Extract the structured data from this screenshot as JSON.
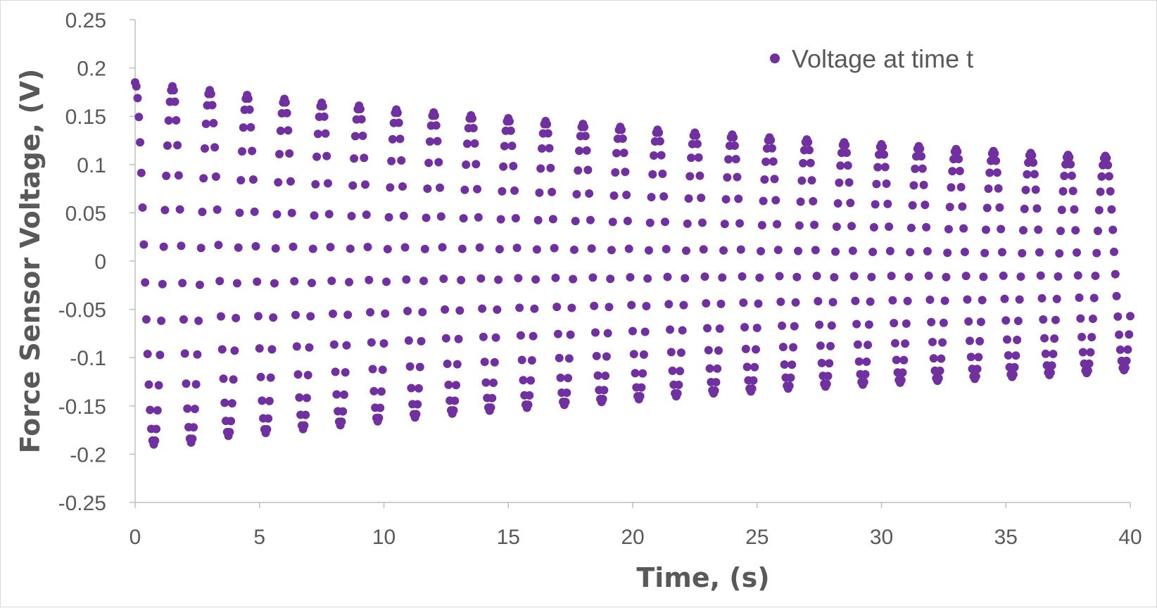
{
  "chart_data": {
    "type": "scatter",
    "title": "",
    "xlabel": "Time, (s)",
    "ylabel": "Force Sensor Voltage, (V)",
    "xlim": [
      0,
      40
    ],
    "ylim": [
      -0.25,
      0.25
    ],
    "x_ticks": [
      "0",
      "5",
      "10",
      "15",
      "20",
      "25",
      "30",
      "35",
      "40"
    ],
    "y_ticks": [
      "0.25",
      "0.2",
      "0.15",
      "0.1",
      "0.05",
      "0",
      "-0.05",
      "-0.1",
      "-0.15",
      "-0.2",
      "-0.25"
    ],
    "grid": false,
    "legend": "top-right",
    "marker_color": "#7030a0",
    "series": [
      {
        "name": "Voltage at time t",
        "period": 1.5,
        "sample_interval": 0.05,
        "peaks": [
          {
            "t": 0.0,
            "v": 0.185
          },
          {
            "t": 1.5,
            "v": 0.181
          },
          {
            "t": 3.0,
            "v": 0.177
          },
          {
            "t": 4.5,
            "v": 0.172
          },
          {
            "t": 6.0,
            "v": 0.168
          },
          {
            "t": 7.5,
            "v": 0.164
          },
          {
            "t": 9.0,
            "v": 0.161
          },
          {
            "t": 10.5,
            "v": 0.157
          },
          {
            "t": 12.0,
            "v": 0.154
          },
          {
            "t": 13.5,
            "v": 0.151
          },
          {
            "t": 15.0,
            "v": 0.148
          },
          {
            "t": 16.5,
            "v": 0.145
          },
          {
            "t": 18.0,
            "v": 0.142
          },
          {
            "t": 19.5,
            "v": 0.139
          },
          {
            "t": 21.0,
            "v": 0.136
          },
          {
            "t": 22.5,
            "v": 0.133
          },
          {
            "t": 24.0,
            "v": 0.131
          },
          {
            "t": 25.5,
            "v": 0.128
          },
          {
            "t": 27.0,
            "v": 0.126
          },
          {
            "t": 28.5,
            "v": 0.123
          },
          {
            "t": 30.0,
            "v": 0.121
          },
          {
            "t": 31.5,
            "v": 0.119
          },
          {
            "t": 33.0,
            "v": 0.116
          },
          {
            "t": 34.5,
            "v": 0.114
          },
          {
            "t": 36.0,
            "v": 0.112
          },
          {
            "t": 37.5,
            "v": 0.11
          },
          {
            "t": 39.0,
            "v": 0.109
          }
        ],
        "troughs": [
          {
            "t": 0.75,
            "v": -0.19
          },
          {
            "t": 2.25,
            "v": -0.188
          },
          {
            "t": 3.75,
            "v": -0.181
          },
          {
            "t": 5.25,
            "v": -0.178
          },
          {
            "t": 6.75,
            "v": -0.174
          },
          {
            "t": 8.25,
            "v": -0.17
          },
          {
            "t": 9.75,
            "v": -0.166
          },
          {
            "t": 11.25,
            "v": -0.162
          },
          {
            "t": 12.75,
            "v": -0.158
          },
          {
            "t": 14.25,
            "v": -0.155
          },
          {
            "t": 15.75,
            "v": -0.152
          },
          {
            "t": 17.25,
            "v": -0.149
          },
          {
            "t": 18.75,
            "v": -0.146
          },
          {
            "t": 20.25,
            "v": -0.143
          },
          {
            "t": 21.75,
            "v": -0.14
          },
          {
            "t": 23.25,
            "v": -0.137
          },
          {
            "t": 24.75,
            "v": -0.135
          },
          {
            "t": 26.25,
            "v": -0.132
          },
          {
            "t": 27.75,
            "v": -0.13
          },
          {
            "t": 29.25,
            "v": -0.128
          },
          {
            "t": 30.75,
            "v": -0.126
          },
          {
            "t": 32.25,
            "v": -0.124
          },
          {
            "t": 33.75,
            "v": -0.122
          },
          {
            "t": 35.25,
            "v": -0.12
          },
          {
            "t": 36.75,
            "v": -0.118
          },
          {
            "t": 38.25,
            "v": -0.116
          },
          {
            "t": 39.75,
            "v": -0.113
          }
        ]
      }
    ]
  }
}
